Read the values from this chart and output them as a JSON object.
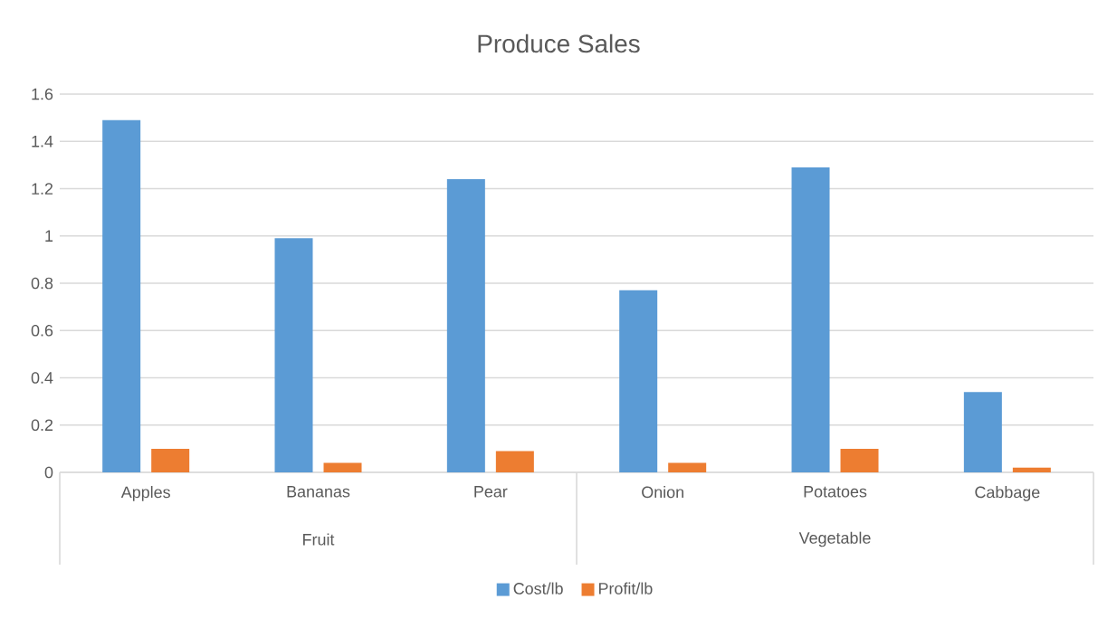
{
  "chart_data": {
    "type": "bar",
    "title": "Produce Sales",
    "categories": [
      "Apples",
      "Bananas",
      "Pear",
      "Onion",
      "Potatoes",
      "Cabbage"
    ],
    "annotations": [
      "Fruit",
      "Vegetable"
    ],
    "series": [
      {
        "name": "Cost/lb",
        "color": "#5b9bd5",
        "values": [
          1.49,
          0.99,
          1.24,
          0.77,
          1.29,
          0.34
        ]
      },
      {
        "name": "Profit/lb",
        "color": "#ed7d31",
        "values": [
          0.1,
          0.04,
          0.09,
          0.04,
          0.1,
          0.02
        ]
      }
    ],
    "ylim": [
      0,
      1.6
    ],
    "yticks": [
      0,
      0.2,
      0.4,
      0.6,
      0.8,
      1,
      1.2,
      1.4,
      1.6
    ],
    "grid": "y",
    "legend": "bottom"
  }
}
